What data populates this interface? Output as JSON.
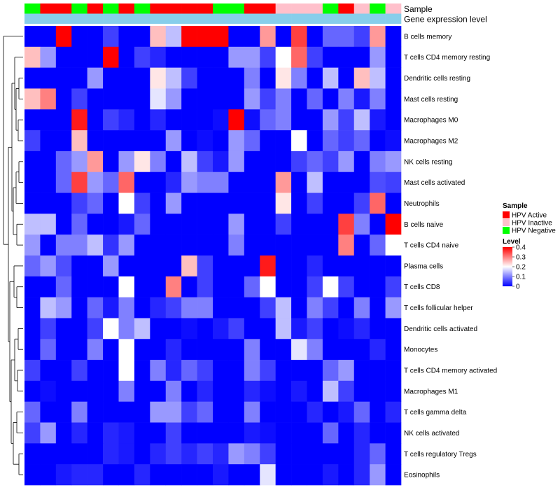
{
  "chart_data": {
    "type": "heatmap",
    "title": "",
    "annotation_tracks": [
      {
        "label": "Sample",
        "values": [
          "HPV Negative",
          "HPV Active",
          "HPV Active",
          "HPV Negative",
          "HPV Active",
          "HPV Negative",
          "HPV Active",
          "HPV Negative",
          "HPV Active",
          "HPV Active",
          "HPV Active",
          "HPV Active",
          "HPV Negative",
          "HPV Negative",
          "HPV Active",
          "HPV Active",
          "HPV Inactive",
          "HPV Inactive",
          "HPV Inactive",
          "HPV Negative",
          "HPV Active",
          "HPV Inactive",
          "HPV Negative",
          "HPV Inactive"
        ]
      },
      {
        "label": "Gene expression level",
        "values": [
          "uniform",
          "uniform",
          "uniform",
          "uniform",
          "uniform",
          "uniform",
          "uniform",
          "uniform",
          "uniform",
          "uniform",
          "uniform",
          "uniform",
          "uniform",
          "uniform",
          "uniform",
          "uniform",
          "uniform",
          "uniform",
          "uniform",
          "uniform",
          "uniform",
          "uniform",
          "uniform",
          "uniform"
        ]
      }
    ],
    "annotation_colors": {
      "HPV Active": "#ff0000",
      "HPV Inactive": "#ffc0cb",
      "HPV Negative": "#00ff00",
      "uniform": "#87ceeb"
    },
    "rows": [
      "B cells memory",
      "T cells CD4 memory resting",
      "Dendritic cells resting",
      "Mast cells resting",
      "Macrophages M0",
      "Macrophages M2",
      "NK cells resting",
      "Mast cells activated",
      "Neutrophils",
      "B cells naive",
      "T cells CD4 naive",
      "Plasma cells",
      "T cells CD8",
      "T cells follicular helper",
      "Dendritic cells activated",
      "Monocytes",
      "T cells CD4 memory activated",
      "Macrophages M1",
      "T cells gamma delta",
      "NK cells activated",
      "T cells regulatory  Tregs",
      "Eosinophils"
    ],
    "values": [
      [
        0,
        0,
        0.4,
        0,
        0,
        0.05,
        0,
        0,
        0.25,
        0.15,
        0.4,
        0.4,
        0.4,
        0,
        0,
        0.28,
        0,
        0.35,
        0,
        0.08,
        0.08,
        0.05,
        0.28,
        0
      ],
      [
        0.25,
        0.12,
        0,
        0,
        0,
        0.4,
        0,
        0.05,
        0.03,
        0,
        0,
        0,
        0,
        0.12,
        0.12,
        0.05,
        0.2,
        0.32,
        0.05,
        0,
        0,
        0,
        0.12,
        0
      ],
      [
        0,
        0,
        0,
        0,
        0.12,
        0,
        0,
        0,
        0.22,
        0.15,
        0.05,
        0,
        0,
        0,
        0.1,
        0,
        0.22,
        0.1,
        0,
        0.15,
        0,
        0.25,
        0.15,
        0
      ],
      [
        0.25,
        0.3,
        0,
        0.05,
        0,
        0,
        0,
        0,
        0.18,
        0.12,
        0,
        0,
        0,
        0,
        0.12,
        0.05,
        0.1,
        0,
        0.08,
        0,
        0.1,
        0.02,
        0.1,
        0
      ],
      [
        0,
        0,
        0,
        0.38,
        0,
        0.05,
        0.03,
        0,
        0.03,
        0,
        0,
        0,
        0.01,
        0.4,
        0.01,
        0.08,
        0.1,
        0,
        0,
        0.12,
        0.05,
        0.15,
        0.02,
        0
      ],
      [
        0.05,
        0,
        0,
        0.25,
        0,
        0,
        0,
        0,
        0,
        0.12,
        0,
        0.01,
        0,
        0.12,
        0.08,
        0,
        0,
        0.2,
        0,
        0.08,
        0.05,
        0.08,
        0,
        0.01
      ],
      [
        0,
        0,
        0.08,
        0.12,
        0.28,
        0,
        0.12,
        0.22,
        0.1,
        0,
        0.15,
        0.05,
        0.02,
        0.12,
        0,
        0,
        0,
        0.05,
        0.08,
        0.05,
        0.12,
        0,
        0.1,
        0.12
      ],
      [
        0,
        0,
        0.08,
        0.35,
        0.12,
        0.08,
        0.32,
        0,
        0,
        0.03,
        0.12,
        0.1,
        0.1,
        0,
        0,
        0,
        0.28,
        0,
        0.15,
        0,
        0,
        0,
        0.06,
        0.05
      ],
      [
        0,
        0,
        0,
        0.05,
        0.08,
        0,
        0.2,
        0.05,
        0,
        0.12,
        0,
        0,
        0,
        0,
        0,
        0,
        0.22,
        0,
        0.05,
        0,
        0,
        0.05,
        0.32,
        0
      ],
      [
        0.15,
        0.15,
        0,
        0.08,
        0,
        0,
        0.02,
        0.08,
        0,
        0,
        0,
        0,
        0,
        0.12,
        0,
        0,
        0.05,
        0,
        0,
        0,
        0.35,
        0.1,
        0,
        0.4
      ],
      [
        0.12,
        0,
        0.1,
        0.1,
        0.15,
        0.04,
        0.12,
        0,
        0,
        0,
        0,
        0,
        0,
        0.1,
        0,
        0,
        0,
        0,
        0,
        0,
        0.3,
        0,
        0.08,
        0.2
      ],
      [
        0.08,
        0.12,
        0.06,
        0,
        0,
        0.12,
        0,
        0,
        0,
        0,
        0.25,
        0.05,
        0,
        0,
        0,
        0.38,
        0,
        0,
        0.03,
        0,
        0,
        0,
        0,
        0
      ],
      [
        0,
        0,
        0.08,
        0,
        0,
        0,
        0.2,
        0,
        0,
        0.3,
        0,
        0.05,
        0,
        0,
        0.08,
        0.2,
        0,
        0,
        0.05,
        0.2,
        0.05,
        0,
        0,
        0.05
      ],
      [
        0,
        0.15,
        0.12,
        0,
        0.08,
        0.02,
        0.1,
        0,
        0.03,
        0.05,
        0.1,
        0.1,
        0,
        0,
        0,
        0.05,
        0.15,
        0,
        0.1,
        0.05,
        0,
        0.1,
        0,
        0.12
      ],
      [
        0,
        0.05,
        0,
        0,
        0.05,
        0.2,
        0.1,
        0.15,
        0,
        0,
        0.01,
        0,
        0.02,
        0.05,
        0,
        0,
        0.15,
        0.02,
        0.05,
        0,
        0.01,
        0.03,
        0,
        0
      ],
      [
        0,
        0.08,
        0,
        0,
        0.1,
        0,
        0.2,
        0,
        0,
        0.03,
        0,
        0,
        0,
        0,
        0.1,
        0,
        0,
        0.18,
        0.1,
        0,
        0,
        0,
        0.03,
        0
      ],
      [
        0.05,
        0,
        0,
        0.05,
        0,
        0,
        0.2,
        0,
        0.1,
        0.03,
        0.08,
        0.05,
        0,
        0,
        0.1,
        0.05,
        0,
        0,
        0,
        0.08,
        0.12,
        0,
        0,
        0
      ],
      [
        0,
        0.01,
        0,
        0,
        0,
        0,
        0.1,
        0,
        0,
        0.1,
        0,
        0.03,
        0,
        0,
        0.03,
        0.01,
        0,
        0.02,
        0,
        0.15,
        0.05,
        0,
        0,
        0
      ],
      [
        0.08,
        0,
        0,
        0.1,
        0,
        0,
        0,
        0,
        0.12,
        0.12,
        0.05,
        0.08,
        0,
        0,
        0.1,
        0,
        0,
        0,
        0.03,
        0,
        0.02,
        0.08,
        0,
        0.03
      ],
      [
        0.05,
        0.12,
        0,
        0.03,
        0,
        0.03,
        0.02,
        0,
        0,
        0.05,
        0,
        0,
        0,
        0,
        0.02,
        0.01,
        0,
        0,
        0,
        0.08,
        0,
        0.03,
        0,
        0
      ],
      [
        0,
        0,
        0,
        0,
        0,
        0.03,
        0.02,
        0,
        0.03,
        0.05,
        0.03,
        0.05,
        0.03,
        0.12,
        0.1,
        0.05,
        0,
        0,
        0,
        0,
        0,
        0.03,
        0.08,
        0
      ],
      [
        0,
        0,
        0.02,
        0.03,
        0.03,
        0,
        0,
        0.03,
        0,
        0,
        0,
        0,
        0.02,
        0,
        0,
        0.18,
        0,
        0,
        0,
        0.02,
        0,
        0.03,
        0.12,
        0
      ]
    ],
    "legend": {
      "sample_title": "Sample",
      "sample_entries": [
        {
          "label": "HPV Active",
          "color": "#ff0000"
        },
        {
          "label": "HPV Inactive",
          "color": "#ffc0cb"
        },
        {
          "label": "HPV Negative",
          "color": "#00ff00"
        }
      ],
      "level_title": "Level",
      "level_ticks": [
        0.4,
        0.3,
        0.2,
        0.1,
        0
      ],
      "level_tick_labels": [
        "0.4",
        "0.3",
        "0.2",
        "0.1",
        "0"
      ],
      "color_low": "#0000ff",
      "color_mid": "#ffffff",
      "color_high": "#ff0000",
      "range": [
        0,
        0.4
      ]
    },
    "row_dendrogram": true
  }
}
